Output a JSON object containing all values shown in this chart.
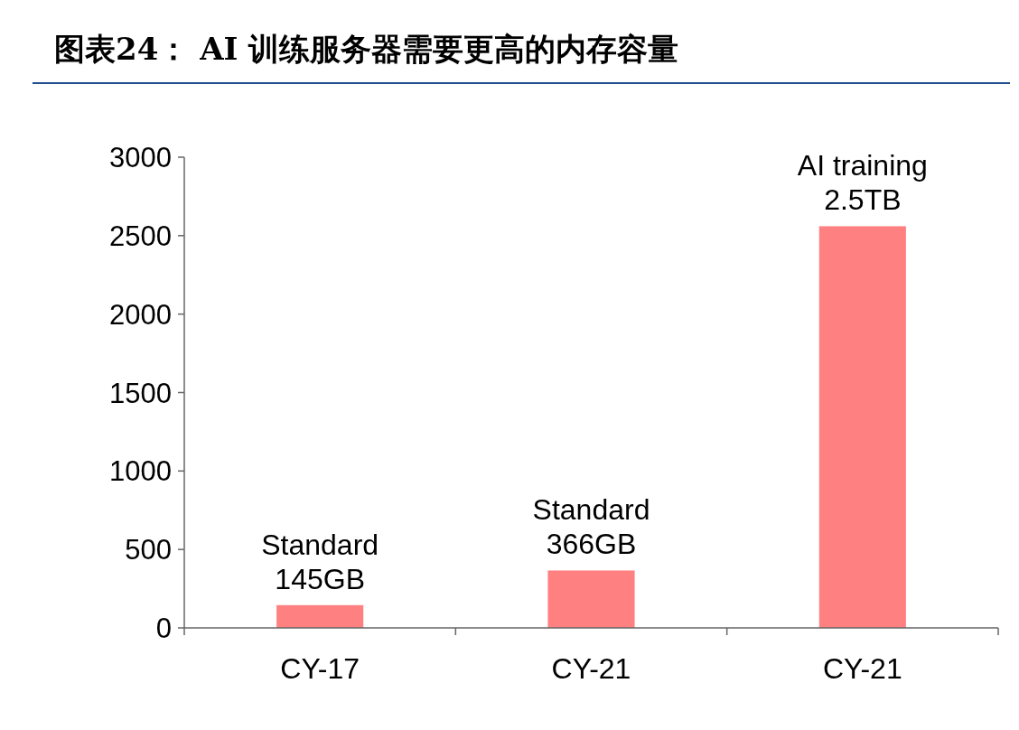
{
  "chart_data": {
    "type": "bar",
    "title": "图表24：  AI 训练服务器需要更高的内存容量",
    "categories": [
      "CY-17",
      "CY-21",
      "CY-21"
    ],
    "values": [
      145,
      366,
      2560
    ],
    "value_labels": [
      "Standard\n145GB",
      "Standard\n366GB",
      "AI training\n2.5TB"
    ],
    "color": "#ff8080",
    "ylim": [
      0,
      3000
    ],
    "yticks": [
      0,
      500,
      1000,
      1500,
      2000,
      2500,
      3000
    ]
  }
}
